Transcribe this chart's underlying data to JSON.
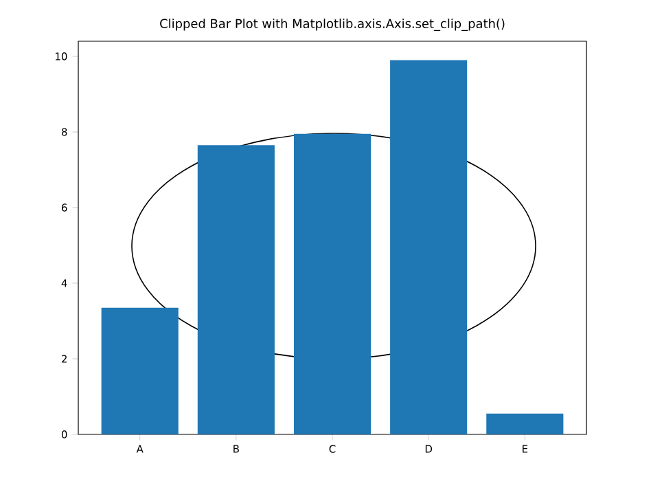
{
  "chart_data": {
    "type": "bar",
    "title": "Clipped Bar Plot with Matplotlib.axis.Axis.set_clip_path()",
    "categories": [
      "A",
      "B",
      "C",
      "D",
      "E"
    ],
    "values": [
      3.35,
      7.65,
      7.95,
      9.9,
      0.55
    ],
    "color": "#1f77b4",
    "ylim": [
      0,
      10.4
    ],
    "yticks": [
      0,
      2,
      4,
      6,
      8,
      10
    ],
    "grid": false
  }
}
